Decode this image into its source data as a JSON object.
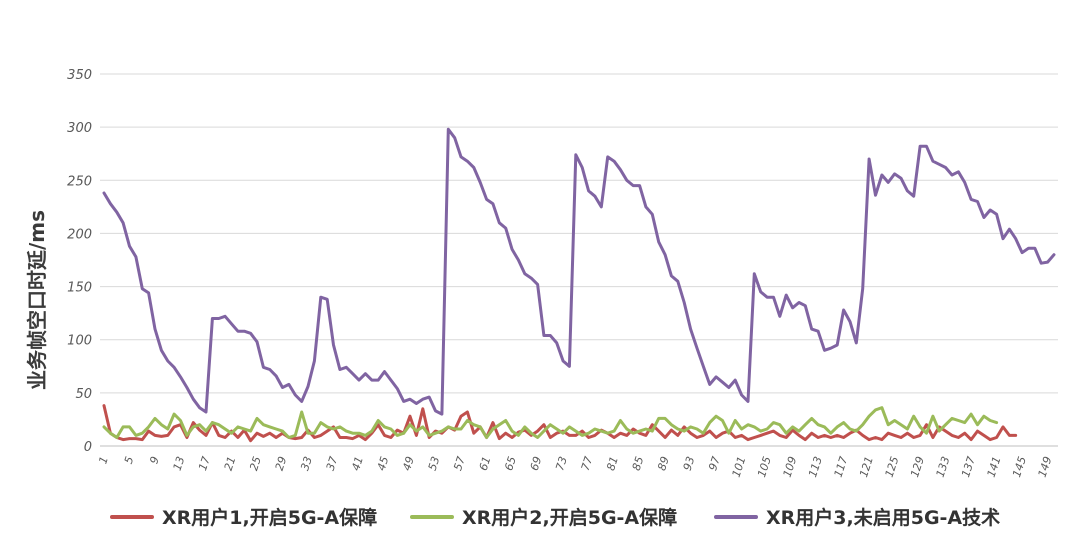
{
  "chart_data": {
    "type": "line",
    "ylabel": "业务帧空口时延/ms",
    "ylim": [
      0,
      350
    ],
    "yticks": [
      0,
      50,
      100,
      150,
      200,
      250,
      300,
      350
    ],
    "x": [
      1,
      2,
      3,
      4,
      5,
      6,
      7,
      8,
      9,
      10,
      11,
      12,
      13,
      14,
      15,
      16,
      17,
      18,
      19,
      20,
      21,
      22,
      23,
      24,
      25,
      26,
      27,
      28,
      29,
      30,
      31,
      32,
      33,
      34,
      35,
      36,
      37,
      38,
      39,
      40,
      41,
      42,
      43,
      44,
      45,
      46,
      47,
      48,
      49,
      50,
      51,
      52,
      53,
      54,
      55,
      56,
      57,
      58,
      59,
      60,
      61,
      62,
      63,
      64,
      65,
      66,
      67,
      68,
      69,
      70,
      71,
      72,
      73,
      74,
      75,
      76,
      77,
      78,
      79,
      80,
      81,
      82,
      83,
      84,
      85,
      86,
      87,
      88,
      89,
      90,
      91,
      92,
      93,
      94,
      95,
      96,
      97,
      98,
      99,
      100,
      101,
      102,
      103,
      104,
      105,
      106,
      107,
      108,
      109,
      110,
      111,
      112,
      113,
      114,
      115,
      116,
      117,
      118,
      119,
      120,
      121,
      122,
      123,
      124,
      125,
      126,
      127,
      128,
      129,
      130,
      131,
      132,
      133,
      134,
      135,
      136,
      137,
      138,
      139,
      140,
      141,
      142,
      143,
      144,
      145,
      146,
      147,
      148,
      149,
      150
    ],
    "xtick_labels": [
      "1",
      "5",
      "9",
      "13",
      "17",
      "21",
      "25",
      "29",
      "33",
      "37",
      "41",
      "45",
      "49",
      "53",
      "57",
      "61",
      "65",
      "69",
      "73",
      "77",
      "81",
      "85",
      "89",
      "93",
      "97",
      "101",
      "105",
      "109",
      "113",
      "117",
      "121",
      "125",
      "129",
      "133",
      "137",
      "141",
      "145",
      "149"
    ],
    "grid": true,
    "legend_position": "bottom",
    "series": [
      {
        "name": "XR用户1,开启5G-A保障",
        "color": "#c0504d",
        "values": [
          38,
          12,
          8,
          6,
          7,
          7,
          6,
          14,
          10,
          9,
          10,
          18,
          20,
          8,
          22,
          15,
          10,
          22,
          10,
          8,
          14,
          8,
          15,
          5,
          12,
          9,
          12,
          8,
          12,
          8,
          7,
          8,
          15,
          8,
          10,
          14,
          18,
          8,
          8,
          7,
          10,
          6,
          12,
          20,
          10,
          8,
          15,
          12,
          28,
          10,
          35,
          8,
          14,
          12,
          18,
          15,
          28,
          32,
          12,
          18,
          8,
          22,
          7,
          12,
          8,
          13,
          15,
          10,
          14,
          20,
          8,
          12,
          14,
          10,
          10,
          14,
          8,
          10,
          15,
          12,
          8,
          12,
          10,
          16,
          12,
          10,
          20,
          14,
          8,
          15,
          10,
          18,
          12,
          8,
          10,
          14,
          8,
          12,
          14,
          8,
          10,
          6,
          8,
          10,
          12,
          14,
          10,
          8,
          15,
          10,
          6,
          12,
          8,
          10,
          8,
          10,
          8,
          12,
          15,
          10,
          6,
          8,
          6,
          12,
          10,
          8,
          12,
          8,
          10,
          20,
          8,
          18,
          14,
          10,
          8,
          12,
          6,
          14,
          10,
          6,
          8,
          18,
          10,
          10,
          null,
          null,
          null,
          null,
          null,
          null
        ]
      },
      {
        "name": "XR用户2,开启5G-A保障",
        "color": "#9bbb59",
        "values": [
          18,
          12,
          8,
          18,
          18,
          10,
          12,
          18,
          26,
          20,
          16,
          30,
          24,
          10,
          18,
          20,
          14,
          22,
          20,
          16,
          12,
          18,
          16,
          14,
          26,
          20,
          18,
          16,
          14,
          8,
          10,
          32,
          12,
          12,
          22,
          18,
          16,
          18,
          14,
          12,
          12,
          10,
          14,
          24,
          18,
          16,
          10,
          12,
          20,
          14,
          18,
          10,
          12,
          14,
          18,
          16,
          16,
          24,
          20,
          18,
          8,
          16,
          20,
          24,
          14,
          10,
          18,
          12,
          8,
          14,
          20,
          16,
          12,
          18,
          14,
          10,
          12,
          16,
          14,
          12,
          14,
          24,
          16,
          12,
          14,
          16,
          14,
          26,
          26,
          20,
          16,
          14,
          18,
          16,
          12,
          22,
          28,
          24,
          12,
          24,
          16,
          20,
          18,
          14,
          16,
          22,
          20,
          12,
          18,
          14,
          20,
          26,
          20,
          18,
          12,
          18,
          22,
          16,
          14,
          20,
          28,
          34,
          36,
          20,
          24,
          20,
          16,
          28,
          18,
          12,
          28,
          14,
          20,
          26,
          24,
          22,
          30,
          20,
          28,
          24,
          22,
          null,
          null,
          null,
          null,
          null,
          null,
          null,
          null,
          null
        ]
      },
      {
        "name": "XR用户3,未启用5G-A技术",
        "color": "#8064a2",
        "values": [
          238,
          228,
          220,
          210,
          188,
          178,
          148,
          144,
          110,
          90,
          80,
          74,
          65,
          55,
          44,
          36,
          32,
          120,
          120,
          122,
          115,
          108,
          108,
          106,
          98,
          74,
          72,
          66,
          55,
          58,
          48,
          42,
          56,
          80,
          140,
          138,
          95,
          72,
          74,
          68,
          62,
          68,
          62,
          62,
          70,
          62,
          54,
          42,
          44,
          40,
          44,
          46,
          33,
          30,
          298,
          290,
          272,
          268,
          262,
          248,
          232,
          228,
          210,
          205,
          185,
          175,
          162,
          158,
          152,
          104,
          104,
          97,
          80,
          75,
          274,
          262,
          240,
          235,
          225,
          272,
          268,
          260,
          250,
          245,
          245,
          225,
          218,
          192,
          180,
          160,
          155,
          135,
          110,
          92,
          75,
          58,
          65,
          60,
          55,
          62,
          48,
          42,
          162,
          145,
          140,
          140,
          122,
          142,
          130,
          135,
          132,
          110,
          108,
          90,
          92,
          95,
          128,
          117,
          97,
          148,
          270,
          236,
          255,
          248,
          256,
          252,
          240,
          235,
          282,
          282,
          268,
          265,
          262,
          255,
          258,
          248,
          232,
          230,
          215,
          222,
          218,
          195,
          204,
          195,
          182,
          186,
          186,
          172,
          173,
          180
        ]
      }
    ]
  }
}
